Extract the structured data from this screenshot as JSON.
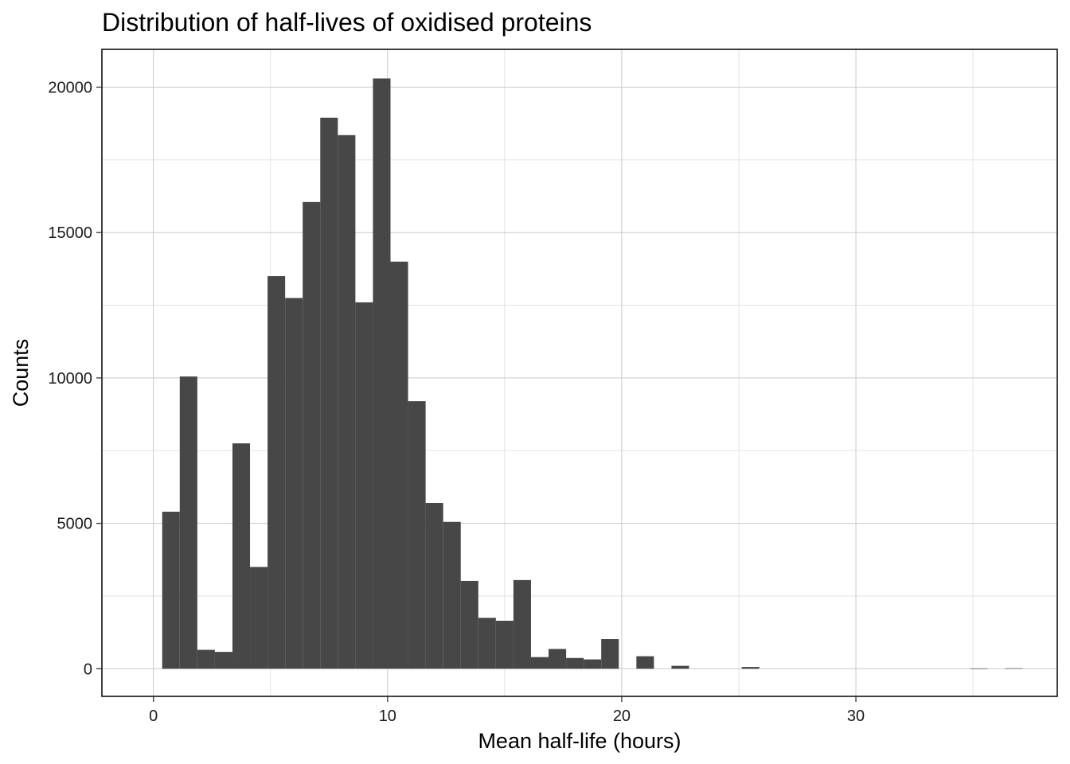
{
  "chart_data": {
    "type": "bar",
    "subtype": "histogram",
    "title": "Distribution of half-lives of oxidised proteins",
    "xlabel": "Mean half-life (hours)",
    "ylabel": "Counts",
    "xlim": [
      -2.2,
      38.6
    ],
    "ylim": [
      -950,
      21300
    ],
    "x_ticks": [
      0,
      10,
      20,
      30
    ],
    "y_ticks": [
      0,
      5000,
      10000,
      15000,
      20000
    ],
    "x_minor_gridlines": [
      5,
      15,
      25,
      35
    ],
    "y_minor_gridlines": [
      2500,
      7500,
      12500,
      17500
    ],
    "grid": true,
    "bar_color": "#474747",
    "bin_width": 0.75,
    "bins": [
      {
        "start": 0.375,
        "count": 5400
      },
      {
        "start": 1.125,
        "count": 10050
      },
      {
        "start": 1.875,
        "count": 650
      },
      {
        "start": 2.625,
        "count": 580
      },
      {
        "start": 3.375,
        "count": 7750
      },
      {
        "start": 4.125,
        "count": 3500
      },
      {
        "start": 4.875,
        "count": 13500
      },
      {
        "start": 5.625,
        "count": 12750
      },
      {
        "start": 6.375,
        "count": 16050
      },
      {
        "start": 7.125,
        "count": 18950
      },
      {
        "start": 7.875,
        "count": 18350
      },
      {
        "start": 8.625,
        "count": 12600
      },
      {
        "start": 9.375,
        "count": 20300
      },
      {
        "start": 10.125,
        "count": 14000
      },
      {
        "start": 10.875,
        "count": 9200
      },
      {
        "start": 11.625,
        "count": 5700
      },
      {
        "start": 12.375,
        "count": 5050
      },
      {
        "start": 13.125,
        "count": 3020
      },
      {
        "start": 13.875,
        "count": 1750
      },
      {
        "start": 14.625,
        "count": 1650
      },
      {
        "start": 15.375,
        "count": 3050
      },
      {
        "start": 16.125,
        "count": 400
      },
      {
        "start": 16.875,
        "count": 680
      },
      {
        "start": 17.625,
        "count": 370
      },
      {
        "start": 18.375,
        "count": 320
      },
      {
        "start": 19.125,
        "count": 1020
      },
      {
        "start": 19.875,
        "count": 0
      },
      {
        "start": 20.625,
        "count": 430
      },
      {
        "start": 21.375,
        "count": 0
      },
      {
        "start": 22.125,
        "count": 100
      },
      {
        "start": 25.125,
        "count": 60
      },
      {
        "start": 34.875,
        "count": 10
      },
      {
        "start": 36.375,
        "count": 15
      }
    ]
  }
}
